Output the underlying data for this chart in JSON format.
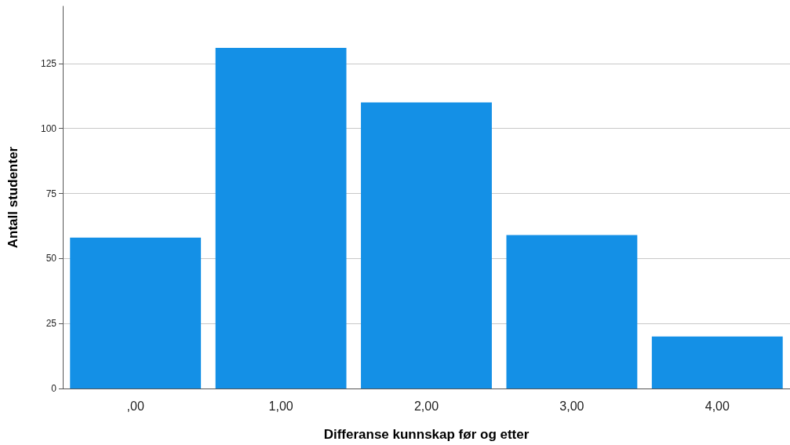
{
  "chart_data": {
    "type": "bar",
    "xlabel": "Differanse kunnskap før og etter",
    "ylabel": "Antall studenter",
    "categories": [
      ",00",
      "1,00",
      "2,00",
      "3,00",
      "4,00"
    ],
    "values": [
      58,
      131,
      110,
      59,
      20
    ],
    "color": "#1490e6",
    "ylim": [
      0,
      147
    ],
    "yticks": [
      0,
      25,
      50,
      75,
      100,
      125
    ],
    "grid": "y"
  }
}
